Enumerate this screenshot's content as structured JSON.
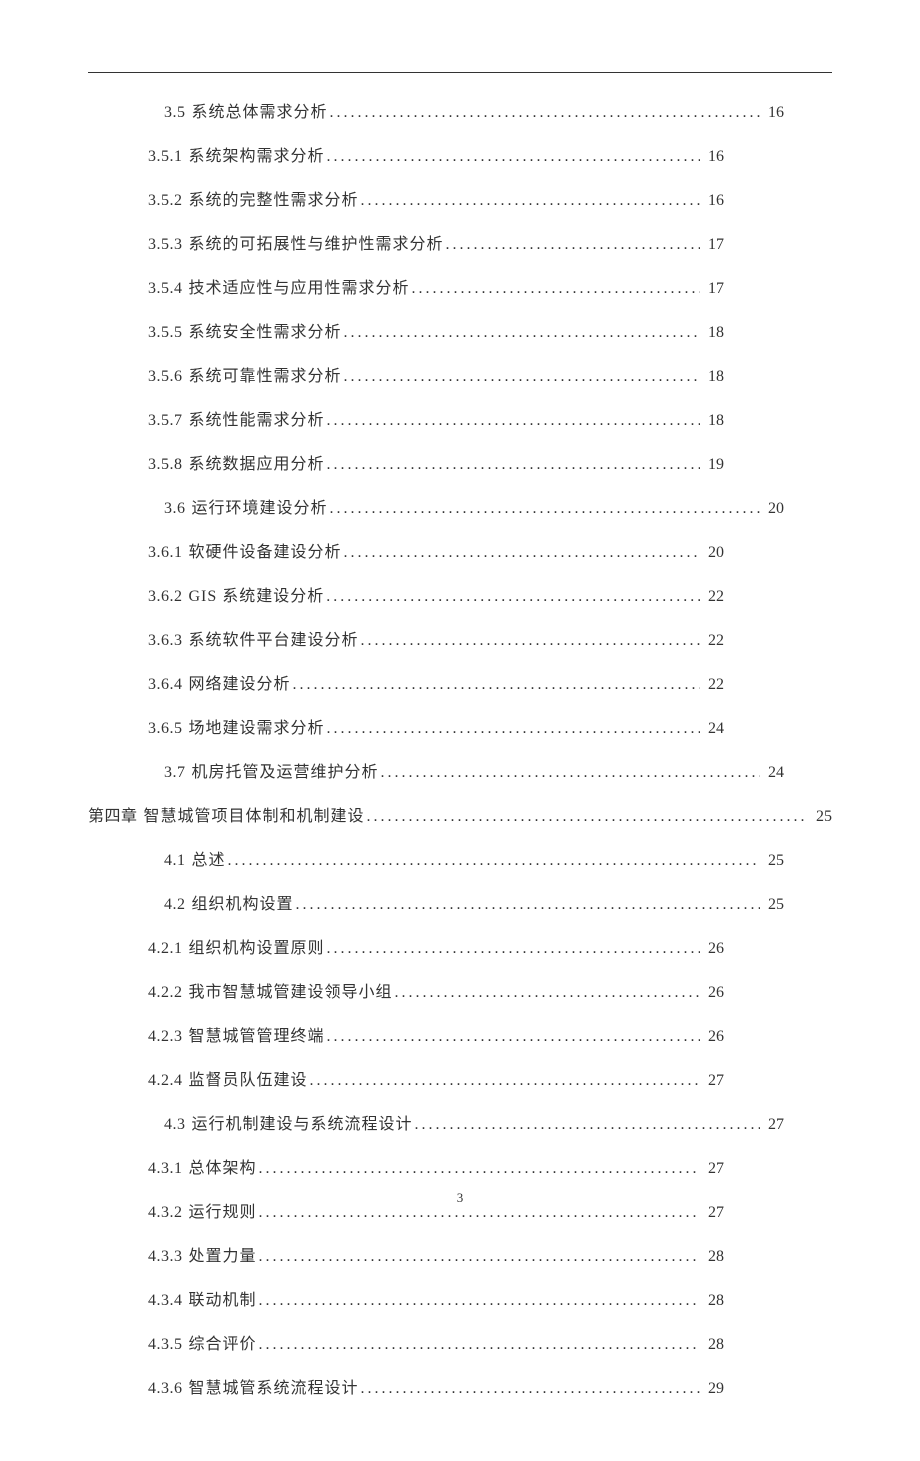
{
  "colors": {
    "text": "#333333",
    "background": "#ffffff",
    "rule": "#333333"
  },
  "typography": {
    "body_font": "SimSun",
    "body_size_pt": 12,
    "line_spacing": 1.5
  },
  "page_number": "3",
  "toc": [
    {
      "level": 1,
      "num": "3.5",
      "title": "系统总体需求分析",
      "page": "16",
      "rightPad": 1
    },
    {
      "level": 2,
      "num": "3.5.1",
      "title": "系统架构需求分析",
      "page": "16",
      "rightPad": 2
    },
    {
      "level": 2,
      "num": "3.5.2",
      "title": "系统的完整性需求分析",
      "page": "16",
      "rightPad": 2
    },
    {
      "level": 2,
      "num": "3.5.3",
      "title": "系统的可拓展性与维护性需求分析",
      "page": "17",
      "rightPad": 2
    },
    {
      "level": 2,
      "num": "3.5.4",
      "title": "技术适应性与应用性需求分析",
      "page": "17",
      "rightPad": 2
    },
    {
      "level": 2,
      "num": "3.5.5",
      "title": "系统安全性需求分析",
      "page": "18",
      "rightPad": 2
    },
    {
      "level": 2,
      "num": "3.5.6",
      "title": "系统可靠性需求分析",
      "page": "18",
      "rightPad": 2
    },
    {
      "level": 2,
      "num": "3.5.7",
      "title": "系统性能需求分析",
      "page": "18",
      "rightPad": 2
    },
    {
      "level": 2,
      "num": "3.5.8",
      "title": "系统数据应用分析",
      "page": "19",
      "rightPad": 2
    },
    {
      "level": 1,
      "num": "3.6",
      "title": "运行环境建设分析",
      "page": "20",
      "rightPad": 1
    },
    {
      "level": 2,
      "num": "3.6.1",
      "title": "软硬件设备建设分析",
      "page": "20",
      "rightPad": 2
    },
    {
      "level": 2,
      "num": "3.6.2",
      "title": "GIS 系统建设分析",
      "page": "22",
      "rightPad": 2
    },
    {
      "level": 2,
      "num": "3.6.3",
      "title": "系统软件平台建设分析",
      "page": "22",
      "rightPad": 2
    },
    {
      "level": 2,
      "num": "3.6.4",
      "title": "网络建设分析",
      "page": "22",
      "rightPad": 2
    },
    {
      "level": 2,
      "num": "3.6.5",
      "title": "场地建设需求分析",
      "page": "24",
      "rightPad": 2
    },
    {
      "level": 1,
      "num": "3.7",
      "title": "机房托管及运营维护分析",
      "page": "24",
      "rightPad": 1
    },
    {
      "level": 0,
      "num": "第四章",
      "title": "智慧城管项目体制和机制建设",
      "page": "25",
      "rightPad": 0
    },
    {
      "level": 1,
      "num": "4.1",
      "title": "总述",
      "page": "25",
      "rightPad": 1
    },
    {
      "level": 1,
      "num": "4.2",
      "title": "组织机构设置",
      "page": "25",
      "rightPad": 1
    },
    {
      "level": 2,
      "num": "4.2.1",
      "title": "组织机构设置原则",
      "page": "26",
      "rightPad": 2
    },
    {
      "level": 2,
      "num": "4.2.2",
      "title": "我市智慧城管建设领导小组",
      "page": "26",
      "rightPad": 2
    },
    {
      "level": 2,
      "num": "4.2.3",
      "title": "智慧城管管理终端",
      "page": "26",
      "rightPad": 2
    },
    {
      "level": 2,
      "num": "4.2.4",
      "title": "监督员队伍建设",
      "page": "27",
      "rightPad": 2
    },
    {
      "level": 1,
      "num": "4.3",
      "title": "运行机制建设与系统流程设计",
      "page": "27",
      "rightPad": 1
    },
    {
      "level": 2,
      "num": "4.3.1",
      "title": "总体架构",
      "page": "27",
      "rightPad": 2
    },
    {
      "level": 2,
      "num": "4.3.2",
      "title": "运行规则",
      "page": "27",
      "rightPad": 2
    },
    {
      "level": 2,
      "num": "4.3.3",
      "title": "处置力量",
      "page": "28",
      "rightPad": 2
    },
    {
      "level": 2,
      "num": "4.3.4",
      "title": "联动机制",
      "page": "28",
      "rightPad": 2
    },
    {
      "level": 2,
      "num": "4.3.5",
      "title": "综合评价",
      "page": "28",
      "rightPad": 2
    },
    {
      "level": 2,
      "num": "4.3.6",
      "title": "智慧城管系统流程设计",
      "page": "29",
      "rightPad": 2
    }
  ]
}
